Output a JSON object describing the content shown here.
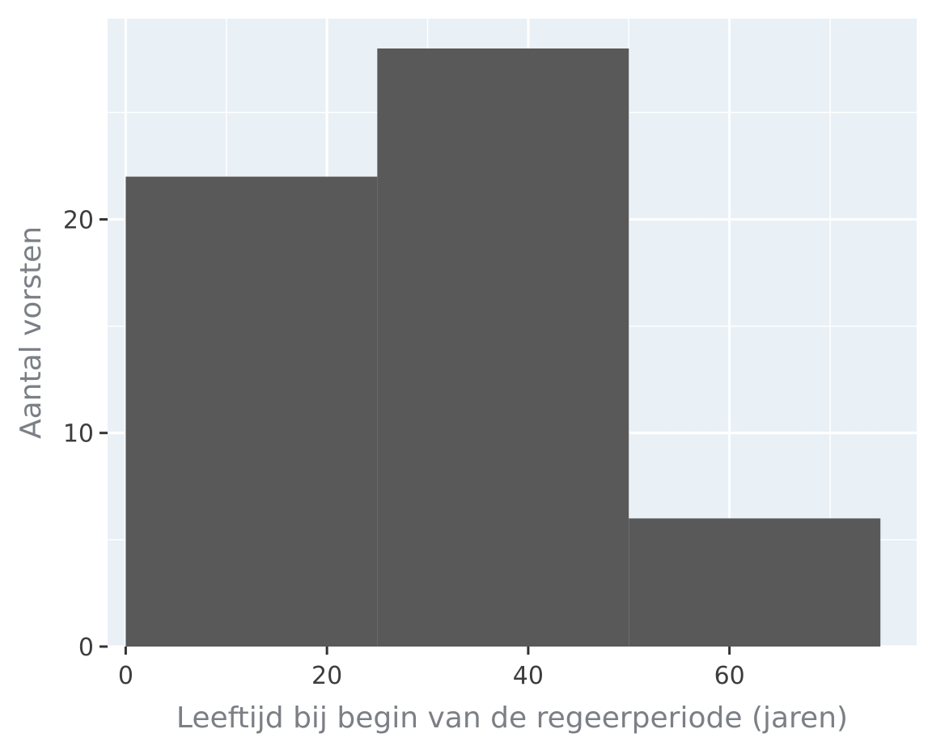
{
  "chart_data": {
    "type": "bar",
    "subtype": "histogram",
    "bins": [
      {
        "start": 0,
        "end": 25,
        "count": 22
      },
      {
        "start": 25,
        "end": 50,
        "count": 28
      },
      {
        "start": 50,
        "end": 75,
        "count": 6
      }
    ],
    "xlabel": "Leeftijd bij begin van de regeerperiode (jaren)",
    "ylabel": "Aantal vorsten",
    "xlim": [
      -1.8,
      78.6
    ],
    "ylim": [
      0,
      29.4
    ],
    "x_ticks": [
      0,
      20,
      40,
      60
    ],
    "x_tick_labels": [
      "0",
      "20",
      "40",
      "60"
    ],
    "y_ticks": [
      0,
      10,
      20
    ],
    "y_tick_labels": [
      "0",
      "10",
      "20"
    ],
    "x_minor_grid": [
      10,
      30,
      50,
      70
    ],
    "y_minor_grid": [
      5,
      15,
      25
    ],
    "grid": true,
    "legend": "none",
    "colors": {
      "panel_background": "#e9f1f6",
      "gridline": "#ffffff",
      "bar_fill": "#595959",
      "tick_mark": "#333333",
      "tick_label": "#3d3d3d",
      "axis_title": "#7b7f86"
    }
  }
}
